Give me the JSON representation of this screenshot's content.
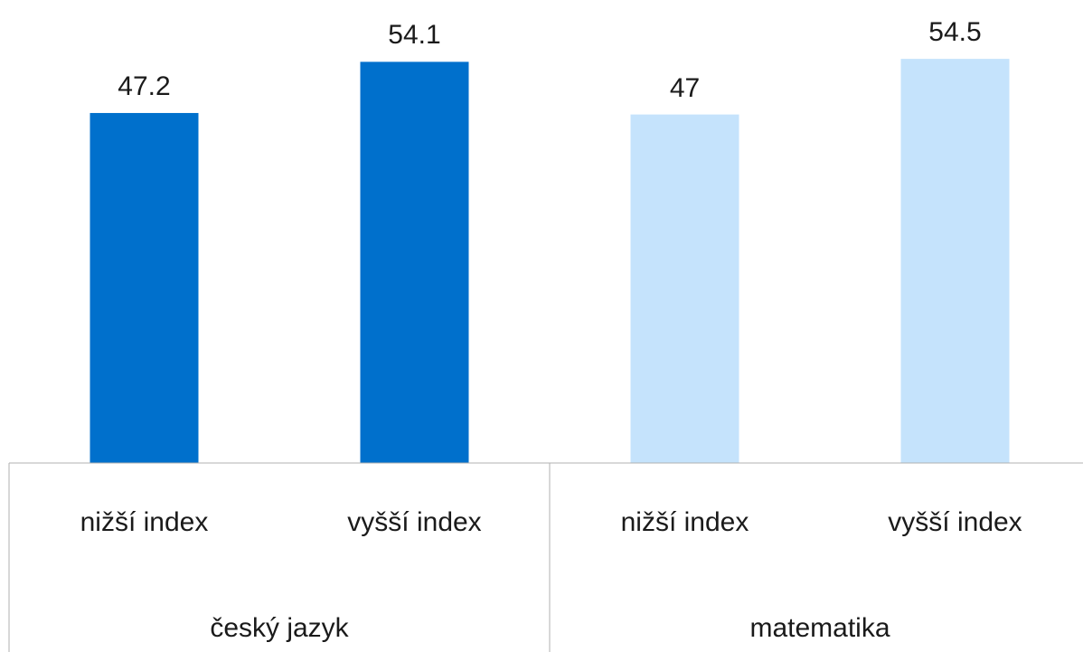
{
  "chart_data": {
    "type": "bar",
    "groups": [
      {
        "name": "český jazyk",
        "color": "#0070cc",
        "categories": [
          "nižší index",
          "vyšší index"
        ],
        "values": [
          47.2,
          54.1
        ]
      },
      {
        "name": "matematika",
        "color": "#c5e3fc",
        "categories": [
          "nižší index",
          "vyšší index"
        ],
        "values": [
          47.0,
          54.5
        ]
      }
    ],
    "ylim": [
      0,
      60
    ]
  }
}
